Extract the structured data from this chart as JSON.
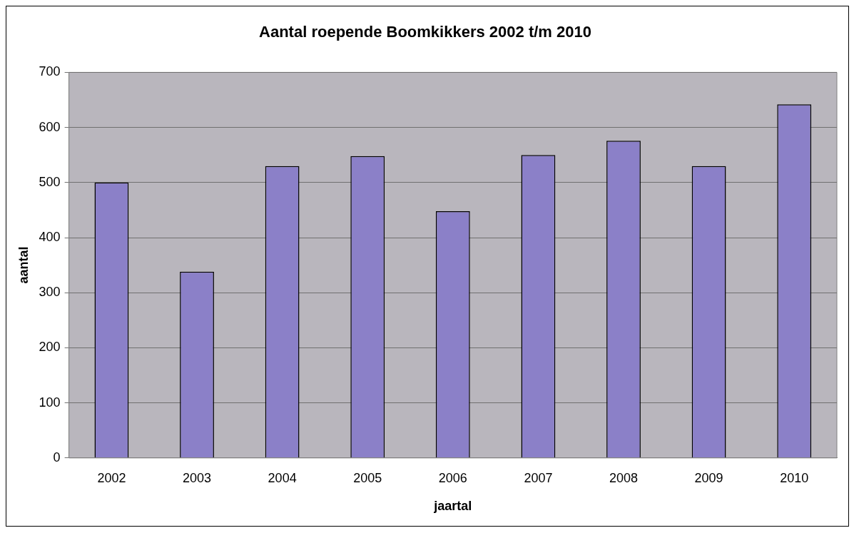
{
  "chart_data": {
    "type": "bar",
    "title": "Aantal roepende Boomkikkers 2002 t/m 2010",
    "xlabel": "jaartal",
    "ylabel": "aantal",
    "categories": [
      "2002",
      "2003",
      "2004",
      "2005",
      "2006",
      "2007",
      "2008",
      "2009",
      "2010"
    ],
    "values": [
      500,
      338,
      530,
      548,
      448,
      550,
      576,
      530,
      642
    ],
    "color": "#8b80c8",
    "ylim": [
      0,
      700
    ],
    "yticks": [
      0,
      100,
      200,
      300,
      400,
      500,
      600,
      700
    ],
    "grid": "y",
    "legend": false
  }
}
